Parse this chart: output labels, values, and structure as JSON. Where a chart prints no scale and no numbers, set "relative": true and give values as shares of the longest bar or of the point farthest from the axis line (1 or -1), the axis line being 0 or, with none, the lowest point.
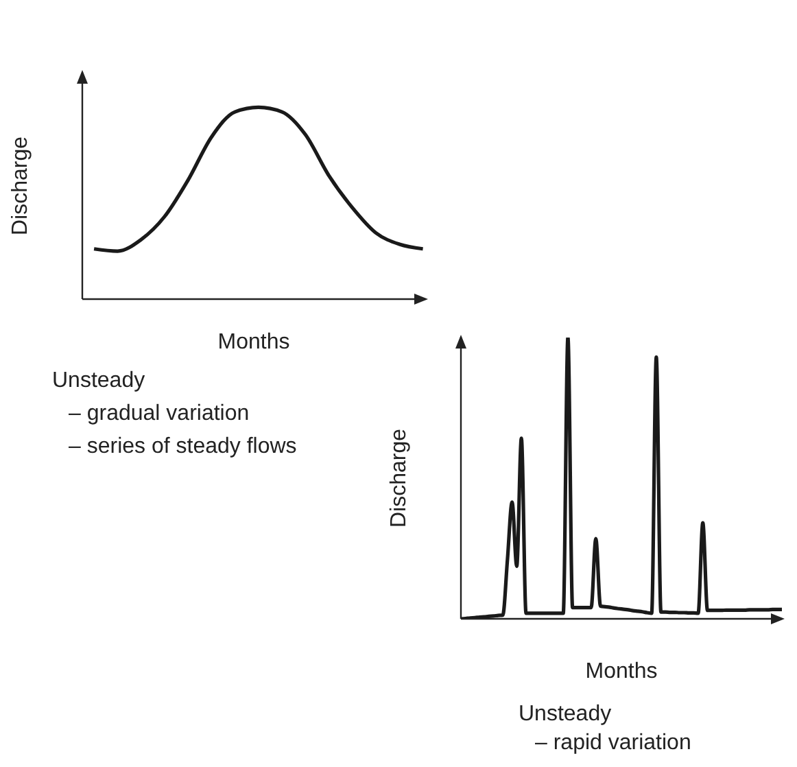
{
  "chart_data": [
    {
      "type": "line",
      "relative": true,
      "xlabel": "Months",
      "ylabel": "Discharge",
      "marker": "none",
      "categories": [
        null,
        null,
        null,
        null,
        null,
        null,
        null,
        null,
        null,
        null,
        null,
        null,
        null,
        null,
        null
      ],
      "series": [
        {
          "color": "#1a1a1a",
          "values": [
            0.262,
            0.25,
            0.31,
            0.43,
            0.62,
            0.845,
            0.976,
            1.0,
            0.976,
            0.857,
            0.643,
            0.476,
            0.345,
            0.286,
            0.262
          ]
        }
      ],
      "annotations": [
        "Unsteady",
        "– gradual variation",
        "– series of steady flows"
      ]
    },
    {
      "type": "line",
      "relative": true,
      "xlabel": "Months",
      "ylabel": "Discharge",
      "marker": "none",
      "categories": [
        null,
        null,
        null,
        null,
        null,
        null,
        null,
        null,
        null,
        null,
        null,
        null,
        null,
        null,
        null,
        null,
        null,
        null,
        null,
        null,
        null,
        null,
        null,
        null,
        null,
        null,
        null,
        null,
        null,
        null,
        null,
        null,
        null,
        null,
        null,
        null,
        null,
        null,
        null,
        null,
        null,
        null,
        null,
        null,
        null,
        null,
        null,
        null,
        null,
        null,
        null,
        null,
        null,
        null,
        null,
        null,
        null,
        null,
        null,
        null,
        null,
        null,
        null,
        null,
        null,
        null,
        null,
        null,
        null,
        null
      ],
      "series": [
        {
          "color": "#1a1a1a",
          "values": [
            0,
            0.001,
            0.003,
            0.004,
            0.006,
            0.007,
            0.009,
            0.01,
            0.012,
            0.013,
            0.21,
            0.415,
            0.187,
            0.642,
            0.02,
            0.02,
            0.02,
            0.02,
            0.02,
            0.02,
            0.02,
            0.02,
            0.02,
            1.0,
            0.04,
            0.04,
            0.04,
            0.04,
            0.04,
            0.285,
            0.045,
            0.043,
            0.041,
            0.038,
            0.036,
            0.034,
            0.032,
            0.029,
            0.027,
            0.025,
            0.022,
            0.02,
            0.93,
            0.024,
            0.024,
            0.023,
            0.023,
            0.022,
            0.022,
            0.021,
            0.021,
            0.02,
            0.341,
            0.03,
            0.03,
            0.03,
            0.03,
            0.031,
            0.031,
            0.031,
            0.031,
            0.031,
            0.032,
            0.032,
            0.032,
            0.032,
            0.032,
            0.033,
            0.033,
            0.033
          ]
        }
      ],
      "annotations": [
        "Unsteady",
        "– rapid variation"
      ]
    }
  ]
}
